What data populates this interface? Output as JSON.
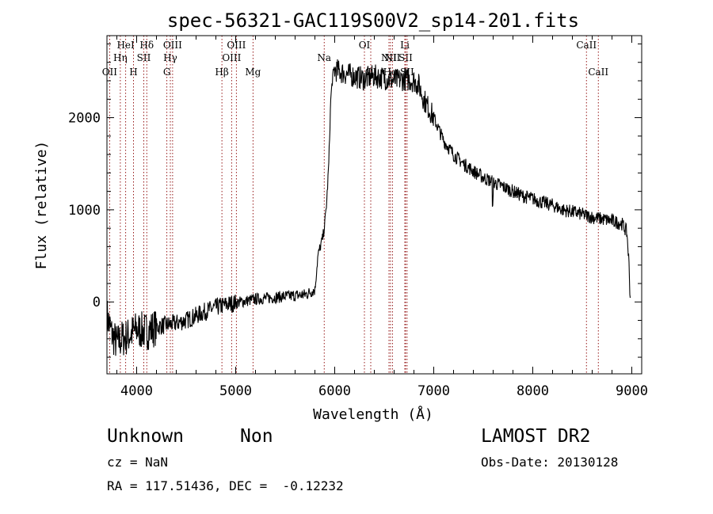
{
  "chart_data": {
    "type": "line",
    "title": "spec-56321-GAC119S00V2_sp14-201.fits",
    "xlabel": "Wavelength (Å)",
    "ylabel": "Flux (relative)",
    "xlim": [
      3700,
      9100
    ],
    "ylim": [
      -780,
      2890
    ],
    "xticks": [
      4000,
      5000,
      6000,
      7000,
      8000,
      9000
    ],
    "yticks": [
      0,
      1000,
      2000
    ],
    "grid": false,
    "line_color": "#000000",
    "marker_color": "#8b0000",
    "spectrum_anchors": [
      [
        3700,
        -150
      ],
      [
        3750,
        -350
      ],
      [
        3800,
        -450
      ],
      [
        3850,
        -400
      ],
      [
        3900,
        -380
      ],
      [
        4000,
        -300
      ],
      [
        4100,
        -320
      ],
      [
        4200,
        -270
      ],
      [
        4300,
        -250
      ],
      [
        4400,
        -230
      ],
      [
        4500,
        -200
      ],
      [
        4600,
        -150
      ],
      [
        4700,
        -100
      ],
      [
        4800,
        -60
      ],
      [
        4900,
        -30
      ],
      [
        5000,
        -10
      ],
      [
        5100,
        10
      ],
      [
        5200,
        30
      ],
      [
        5300,
        40
      ],
      [
        5400,
        50
      ],
      [
        5500,
        60
      ],
      [
        5600,
        70
      ],
      [
        5700,
        80
      ],
      [
        5800,
        130
      ],
      [
        5830,
        500
      ],
      [
        5880,
        700
      ],
      [
        5900,
        850
      ],
      [
        5920,
        1100
      ],
      [
        5940,
        1500
      ],
      [
        5960,
        2200
      ],
      [
        5980,
        2450
      ],
      [
        6000,
        2520
      ],
      [
        6100,
        2480
      ],
      [
        6200,
        2450
      ],
      [
        6300,
        2420
      ],
      [
        6400,
        2450
      ],
      [
        6500,
        2430
      ],
      [
        6600,
        2400
      ],
      [
        6700,
        2420
      ],
      [
        6800,
        2400
      ],
      [
        6850,
        2350
      ],
      [
        6900,
        2200
      ],
      [
        7000,
        2000
      ],
      [
        7100,
        1750
      ],
      [
        7200,
        1600
      ],
      [
        7300,
        1500
      ],
      [
        7400,
        1420
      ],
      [
        7500,
        1350
      ],
      [
        7600,
        1300
      ],
      [
        7700,
        1250
      ],
      [
        7800,
        1200
      ],
      [
        7900,
        1150
      ],
      [
        8000,
        1120
      ],
      [
        8100,
        1080
      ],
      [
        8200,
        1050
      ],
      [
        8300,
        1000
      ],
      [
        8400,
        980
      ],
      [
        8500,
        950
      ],
      [
        8600,
        920
      ],
      [
        8700,
        900
      ],
      [
        8800,
        880
      ],
      [
        8900,
        850
      ],
      [
        8950,
        760
      ],
      [
        8970,
        450
      ],
      [
        8985,
        0
      ]
    ],
    "lines": [
      {
        "label": "OII",
        "x": 3727,
        "row": 3
      },
      {
        "label": "Hη",
        "x": 3835,
        "row": 2
      },
      {
        "label": "HeI",
        "x": 3889,
        "row": 1
      },
      {
        "label": "H",
        "x": 3968,
        "row": 3
      },
      {
        "label": "SII",
        "x": 4072,
        "row": 2
      },
      {
        "label": "Hδ",
        "x": 4102,
        "row": 1
      },
      {
        "label": "G",
        "x": 4305,
        "row": 3
      },
      {
        "label": "Hγ",
        "x": 4340,
        "row": 2
      },
      {
        "label": "OIII",
        "x": 4363,
        "row": 1
      },
      {
        "label": "Hβ",
        "x": 4861,
        "row": 3
      },
      {
        "label": "OIII",
        "x": 4959,
        "row": 2
      },
      {
        "label": "OIII",
        "x": 5007,
        "row": 1
      },
      {
        "label": "Mg",
        "x": 5175,
        "row": 3
      },
      {
        "label": "Na",
        "x": 5894,
        "row": 2
      },
      {
        "label": "OI",
        "x": 6300,
        "row": 1
      },
      {
        "label": "OI",
        "x": 6364,
        "row": 3
      },
      {
        "label": "NII",
        "x": 6548,
        "row": 2
      },
      {
        "label": "Hα",
        "x": 6563,
        "row": 3
      },
      {
        "label": "NII",
        "x": 6583,
        "row": 2
      },
      {
        "label": "Li",
        "x": 6708,
        "row": 1
      },
      {
        "label": "SII",
        "x": 6716,
        "row": 2
      },
      {
        "label": "SII",
        "x": 6731,
        "row": 3
      },
      {
        "label": "CaII",
        "x": 8542,
        "row": 1
      },
      {
        "label": "CaII",
        "x": 8662,
        "row": 3
      }
    ]
  },
  "info": {
    "class_name": "Unknown",
    "subclass": "Non",
    "survey": "LAMOST DR2",
    "redshift": "cz = NaN",
    "obs_date": "Obs-Date: 20130128",
    "coords": "RA = 117.51436, DEC =  -0.12232"
  }
}
